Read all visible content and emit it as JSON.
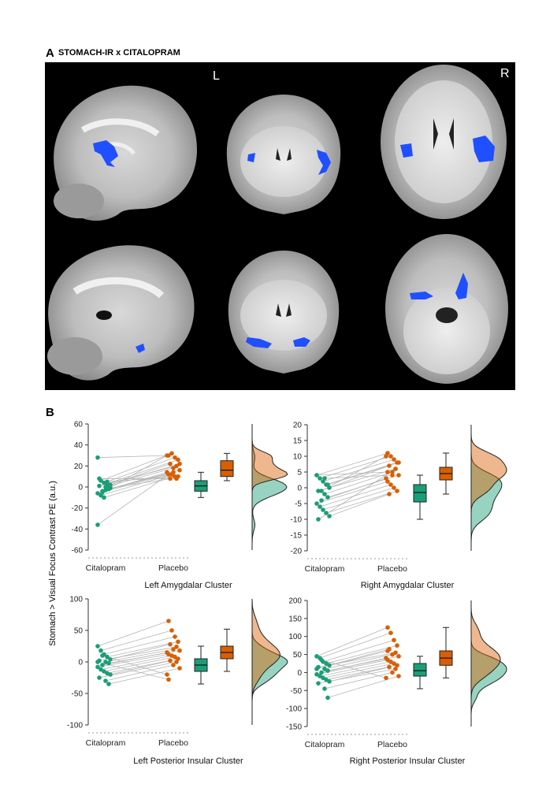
{
  "panel_a": {
    "letter": "A",
    "title": "STOMACH-IR x CITALOPRAM",
    "hemisphere_left": "L",
    "hemisphere_right": "R"
  },
  "panel_b": {
    "letter": "B",
    "y_axis_label": "Stomach > Visual Focus Contrast PE (a.u.)"
  },
  "colors": {
    "citalopram": "#1b9e77",
    "placebo": "#d95f02",
    "activation": "#1f4fff",
    "background": "#000000"
  },
  "chart_data": [
    {
      "type": "scatter",
      "title": "Left Amygdalar Cluster",
      "categories": [
        "Citalopram",
        "Placebo"
      ],
      "ylim": [
        -60,
        60
      ],
      "yticks": [
        -60,
        -40,
        -20,
        0,
        20,
        40,
        60
      ],
      "series": [
        {
          "name": "Citalopram",
          "values": [
            28,
            6,
            4,
            3,
            2,
            1,
            0,
            -2,
            -4,
            -6,
            -8,
            -10,
            5,
            -1,
            8,
            -3,
            2,
            -5,
            -36
          ]
        },
        {
          "name": "Placebo",
          "values": [
            30,
            32,
            28,
            26,
            22,
            20,
            18,
            16,
            14,
            12,
            12,
            10,
            10,
            8,
            8,
            14,
            22,
            30,
            12
          ]
        }
      ],
      "box": [
        {
          "name": "Citalopram",
          "min": -10,
          "q1": -4,
          "median": 1,
          "q3": 6,
          "max": 14
        },
        {
          "name": "Placebo",
          "min": 6,
          "q1": 10,
          "median": 16,
          "q3": 25,
          "max": 32
        }
      ]
    },
    {
      "type": "scatter",
      "title": "Right Amygdalar Cluster",
      "categories": [
        "Citalopram",
        "Placebo"
      ],
      "ylim": [
        -20,
        20
      ],
      "yticks": [
        -20,
        -15,
        -10,
        -5,
        0,
        5,
        10,
        15,
        20
      ],
      "series": [
        {
          "name": "Citalopram",
          "values": [
            4,
            3,
            2,
            1,
            0,
            -1,
            -2,
            -3,
            -4,
            -5,
            -6,
            -7,
            -8,
            -9,
            -10,
            3,
            1,
            -1,
            4
          ]
        },
        {
          "name": "Placebo",
          "values": [
            11,
            10,
            9,
            8,
            7,
            6,
            5,
            4,
            3,
            2,
            1,
            0,
            -1,
            -2,
            6,
            4,
            8,
            10,
            5
          ]
        }
      ],
      "box": [
        {
          "name": "Citalopram",
          "min": -10,
          "q1": -4.5,
          "median": -1.5,
          "q3": 1,
          "max": 4
        },
        {
          "name": "Placebo",
          "min": -2,
          "q1": 2.5,
          "median": 4.5,
          "q3": 6.5,
          "max": 11
        }
      ]
    },
    {
      "type": "scatter",
      "title": "Left Posterior Insular Cluster",
      "categories": [
        "Citalopram",
        "Placebo"
      ],
      "ylim": [
        -100,
        100
      ],
      "yticks": [
        -100,
        -50,
        0,
        50,
        100
      ],
      "series": [
        {
          "name": "Citalopram",
          "values": [
            25,
            18,
            12,
            8,
            4,
            2,
            0,
            -2,
            -5,
            -8,
            -12,
            -15,
            -18,
            -20,
            -25,
            -30,
            -35,
            10,
            0
          ]
        },
        {
          "name": "Placebo",
          "values": [
            65,
            50,
            40,
            32,
            28,
            24,
            20,
            18,
            15,
            12,
            10,
            8,
            5,
            2,
            0,
            -5,
            -10,
            -20,
            -28
          ]
        }
      ],
      "box": [
        {
          "name": "Citalopram",
          "min": -35,
          "q1": -15,
          "median": -5,
          "q3": 5,
          "max": 25
        },
        {
          "name": "Placebo",
          "min": -15,
          "q1": 5,
          "median": 15,
          "q3": 25,
          "max": 52
        }
      ]
    },
    {
      "type": "scatter",
      "title": "Right Posterior Insular Cluster",
      "categories": [
        "Citalopram",
        "Placebo"
      ],
      "ylim": [
        -150,
        200
      ],
      "yticks": [
        -150,
        -100,
        -50,
        0,
        50,
        100,
        150,
        200
      ],
      "series": [
        {
          "name": "Citalopram",
          "values": [
            45,
            40,
            30,
            25,
            20,
            15,
            10,
            5,
            0,
            -5,
            -10,
            -15,
            -20,
            -25,
            -30,
            -45,
            -70,
            35,
            10
          ]
        },
        {
          "name": "Placebo",
          "values": [
            125,
            110,
            90,
            75,
            65,
            55,
            50,
            45,
            40,
            35,
            30,
            25,
            20,
            15,
            10,
            0,
            -10,
            -15,
            60
          ]
        }
      ],
      "box": [
        {
          "name": "Citalopram",
          "min": -45,
          "q1": -10,
          "median": 5,
          "q3": 25,
          "max": 45
        },
        {
          "name": "Placebo",
          "min": -15,
          "q1": 20,
          "median": 40,
          "q3": 60,
          "max": 125
        }
      ]
    }
  ]
}
